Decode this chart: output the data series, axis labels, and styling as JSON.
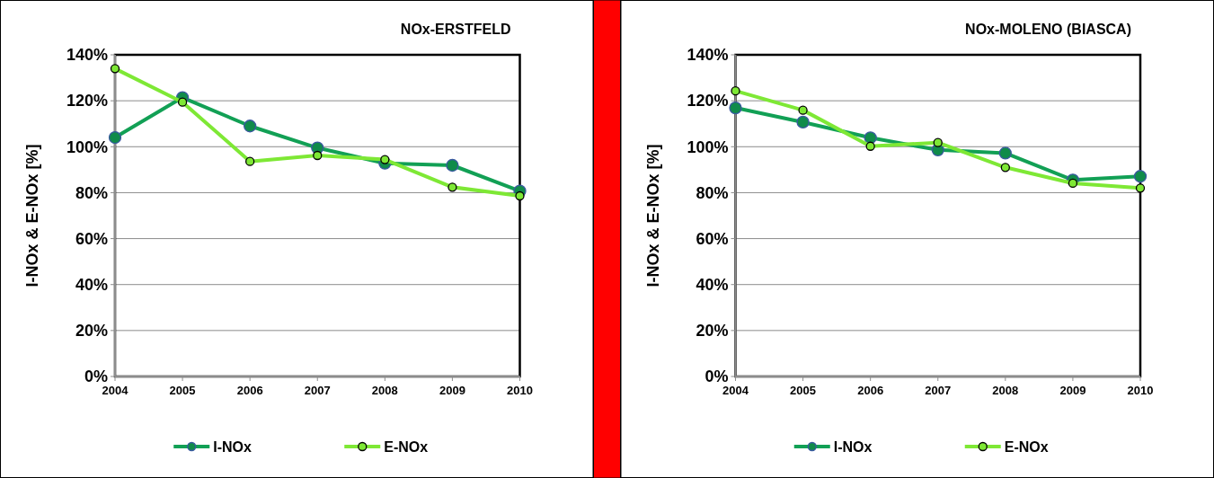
{
  "chart_data": [
    {
      "type": "line",
      "title": "NOx-ERSTFELD",
      "ylabel": "I-NOx & E-NOx [%]",
      "categories": [
        "2004",
        "2005",
        "2006",
        "2007",
        "2008",
        "2009",
        "2010"
      ],
      "series": [
        {
          "name": "I-NOx",
          "color": "#12a055",
          "values": [
            104,
            121.4,
            109,
            99.5,
            92.8,
            91.9,
            80.7
          ]
        },
        {
          "name": "E-NOx",
          "color": "#7ee835",
          "values": [
            134,
            119.4,
            93.6,
            96.2,
            94.4,
            82.4,
            78.6
          ]
        }
      ],
      "ylim": [
        0,
        140
      ],
      "yticks": [
        {
          "value": 0,
          "label": "0%"
        },
        {
          "value": 20,
          "label": "20%"
        },
        {
          "value": 40,
          "label": "40%"
        },
        {
          "value": 60,
          "label": "60%"
        },
        {
          "value": 80,
          "label": "80%"
        },
        {
          "value": 100,
          "label": "100%"
        },
        {
          "value": 120,
          "label": "120%"
        },
        {
          "value": 140,
          "label": "140%"
        }
      ],
      "grid": "y",
      "legend": "bottom",
      "marker": "circle",
      "line_style": "solid"
    },
    {
      "type": "line",
      "title": "NOx-MOLENO (BIASCA)",
      "ylabel": "I-NOx & E-NOx [%]",
      "categories": [
        "2004",
        "2005",
        "2006",
        "2007",
        "2008",
        "2009",
        "2010"
      ],
      "series": [
        {
          "name": "I-NOx",
          "color": "#12a055",
          "values": [
            116.9,
            110.7,
            103.9,
            98.6,
            97.2,
            85.5,
            87.1
          ]
        },
        {
          "name": "E-NOx",
          "color": "#7ee835",
          "values": [
            124.3,
            115.9,
            100.2,
            101.8,
            91,
            84.1,
            82
          ]
        }
      ],
      "ylim": [
        0,
        140
      ],
      "yticks": [
        {
          "value": 0,
          "label": "0%"
        },
        {
          "value": 20,
          "label": "20%"
        },
        {
          "value": 40,
          "label": "40%"
        },
        {
          "value": 60,
          "label": "60%"
        },
        {
          "value": 80,
          "label": "80%"
        },
        {
          "value": 100,
          "label": "100%"
        },
        {
          "value": 120,
          "label": "120%"
        },
        {
          "value": 140,
          "label": "140%"
        }
      ],
      "grid": "y",
      "legend": "bottom",
      "marker": "circle",
      "line_style": "solid"
    }
  ]
}
